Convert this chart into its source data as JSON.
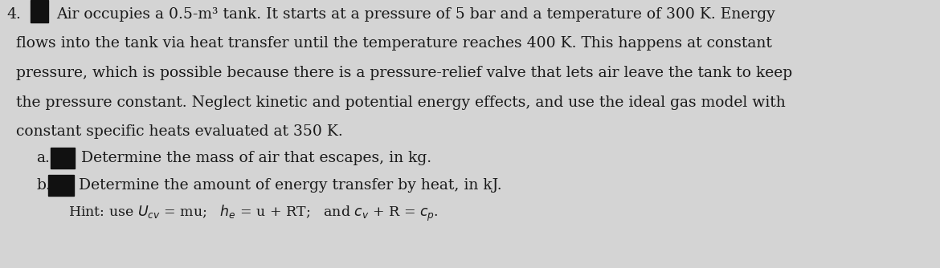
{
  "background_color": "#d4d4d4",
  "text_color": "#1a1a1a",
  "number": "4.",
  "line1": "Air occupies a 0.5-m³ tank. It starts at a pressure of 5 bar and a temperature of 300 K. Energy",
  "line2": "flows into the tank via heat transfer until the temperature reaches 400 K. This happens at constant",
  "line3": "pressure, which is possible because there is a pressure-relief valve that lets air leave the tank to keep",
  "line4": "the pressure constant. Neglect kinetic and potential energy effects, and use the ideal gas model with",
  "line5": "constant specific heats evaluated at 350 K.",
  "line_a": "Determine the mass of air that escapes, in kg.",
  "line_b": "Determine the amount of energy transfer by heat, in kJ.",
  "label_a": "a.",
  "label_b": "b.",
  "font_size_main": 13.5,
  "font_size_hint": 12.5,
  "black_box_color": "#111111",
  "fig_width": 11.7,
  "fig_height": 3.34,
  "dpi": 100
}
